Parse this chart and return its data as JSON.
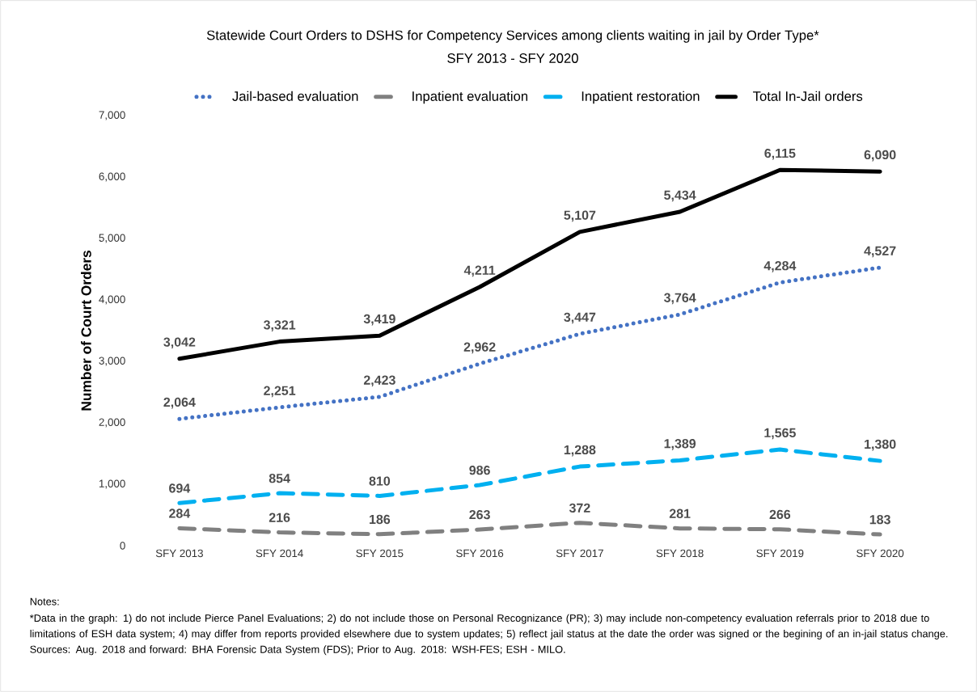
{
  "chart_data": {
    "type": "line",
    "title": "Statewide Court Orders to DSHS for Competency Services among clients waiting in jail by Order Type*",
    "subtitle": "SFY 2013 - SFY 2020",
    "ylabel": "Number of Court Orders",
    "categories": [
      "SFY 2013",
      "SFY 2014",
      "SFY 2015",
      "SFY 2016",
      "SFY 2017",
      "SFY 2018",
      "SFY 2019",
      "SFY 2020"
    ],
    "series": [
      {
        "name": "Jail-based evaluation",
        "color": "#4472c4",
        "line_style": "dotted",
        "values": [
          2064,
          2251,
          2423,
          2962,
          3447,
          3764,
          4284,
          4527
        ],
        "value_labels": [
          "2,064",
          "2,251",
          "2,423",
          "2,962",
          "3,447",
          "3,764",
          "4,284",
          "4,527"
        ]
      },
      {
        "name": "Inpatient evaluation",
        "color": "#808080",
        "line_style": "dashed",
        "values": [
          284,
          216,
          186,
          263,
          372,
          281,
          266,
          183
        ],
        "value_labels": [
          "284",
          "216",
          "186",
          "263",
          "372",
          "281",
          "266",
          "183"
        ]
      },
      {
        "name": "Inpatient restoration",
        "color": "#00b0f0",
        "line_style": "dashed",
        "values": [
          694,
          854,
          810,
          986,
          1288,
          1389,
          1565,
          1380
        ],
        "value_labels": [
          "694",
          "854",
          "810",
          "986",
          "1,288",
          "1,389",
          "1,565",
          "1,380"
        ]
      },
      {
        "name": "Total In-Jail orders",
        "color": "#000000",
        "line_style": "solid",
        "values": [
          3042,
          3321,
          3419,
          4211,
          5107,
          5434,
          6115,
          6090
        ],
        "value_labels": [
          "3,042",
          "3,321",
          "3,419",
          "4,211",
          "5,107",
          "5,434",
          "6,115",
          "6,090"
        ]
      }
    ],
    "ylim": [
      0,
      7000
    ],
    "yticks": [
      0,
      {
        "value": 1000,
        "label": "1,000"
      },
      {
        "value": 2000,
        "label": "2,000"
      },
      {
        "value": 3000,
        "label": "3,000"
      },
      {
        "value": 4000,
        "label": "4,000"
      },
      {
        "value": 5000,
        "label": "5,000"
      },
      {
        "value": 6000,
        "label": "6,000"
      },
      {
        "value": 7000,
        "label": "7,000"
      }
    ],
    "grid": false,
    "legend": "top",
    "annotations": [
      "Notes:",
      "*Data in the graph: 1) do not include Pierce Panel Evaluations; 2) do not include those on Personal Recognizance (PR); 3) may include non-competency evaluation referrals prior to 2018 due to limitations of ESH data system; 4) may differ from reports provided elsewhere due to system updates; 5) reflect jail status at the date the order was signed or the begining of an in-jail status change. Sources: Aug. 2018 and forward: BHA Forensic Data System (FDS); Prior to Aug. 2018: WSH-FES; ESH - MILO."
    ]
  }
}
